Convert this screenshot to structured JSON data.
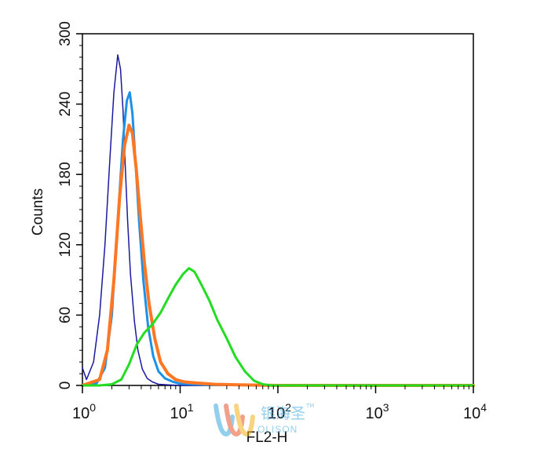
{
  "chart_data": {
    "type": "line",
    "xlabel": "FL2-H",
    "ylabel": "Counts",
    "xscale": "log",
    "xlim": [
      1,
      10000
    ],
    "ylim": [
      0,
      300
    ],
    "x_ticks": [
      {
        "value": 1,
        "base": "10",
        "exp": "0"
      },
      {
        "value": 10,
        "base": "10",
        "exp": "1"
      },
      {
        "value": 100,
        "base": "10",
        "exp": "2"
      },
      {
        "value": 1000,
        "base": "10",
        "exp": "3"
      },
      {
        "value": 10000,
        "base": "10",
        "exp": "4"
      }
    ],
    "y_ticks": [
      0,
      60,
      120,
      180,
      240,
      300
    ],
    "grid": false,
    "series": [
      {
        "color": "#1a1aa0",
        "stroke_width": 1.5,
        "x": [
          1,
          1.1,
          1.3,
          1.5,
          1.7,
          1.9,
          2.1,
          2.3,
          2.45,
          2.6,
          2.75,
          2.9,
          3.1,
          3.4,
          3.7,
          4.1,
          4.6,
          5.2,
          6,
          7.5,
          10,
          20,
          100,
          10000
        ],
        "y": [
          15,
          5,
          20,
          60,
          120,
          190,
          250,
          282,
          270,
          235,
          185,
          140,
          95,
          55,
          30,
          14,
          6,
          3,
          1,
          0.5,
          0,
          0,
          0,
          0
        ]
      },
      {
        "color": "#1e90e6",
        "stroke_width": 3,
        "x": [
          1,
          1.4,
          1.7,
          2,
          2.3,
          2.6,
          2.85,
          3.05,
          3.25,
          3.5,
          3.8,
          4.2,
          4.7,
          5.3,
          6,
          7,
          8.5,
          10,
          13,
          20,
          100,
          10000
        ],
        "y": [
          0,
          2,
          15,
          60,
          140,
          210,
          243,
          250,
          232,
          190,
          140,
          90,
          50,
          25,
          12,
          6,
          3,
          1.5,
          1,
          0.5,
          0,
          0
        ]
      },
      {
        "color": "#ff7722",
        "stroke_width": 4,
        "x": [
          1,
          1.5,
          1.8,
          2.1,
          2.4,
          2.7,
          3,
          3.25,
          3.55,
          3.9,
          4.3,
          4.8,
          5.5,
          6.3,
          7.5,
          9,
          11,
          15,
          22,
          40,
          100,
          10000
        ],
        "y": [
          0,
          5,
          30,
          90,
          160,
          205,
          222,
          215,
          185,
          145,
          105,
          70,
          40,
          20,
          10,
          5,
          3,
          2,
          1,
          0.5,
          0,
          0
        ]
      },
      {
        "color": "#22dd22",
        "stroke_width": 3,
        "x": [
          1,
          1.5,
          2,
          2.5,
          3,
          3.6,
          4.3,
          5.2,
          6.3,
          7.6,
          9,
          10.7,
          12.3,
          14,
          16.5,
          20,
          24,
          30,
          37,
          46,
          57,
          70,
          85,
          100,
          130,
          200,
          1000,
          10000
        ],
        "y": [
          0,
          0,
          1,
          5,
          18,
          35,
          45,
          52,
          62,
          75,
          86,
          95,
          100,
          97,
          86,
          72,
          56,
          40,
          24,
          12,
          4,
          1,
          0,
          0,
          0,
          0,
          0,
          0
        ]
      }
    ]
  },
  "watermark": {
    "name": "银海圣",
    "sub": "OLISON",
    "tm": "TM",
    "colors": [
      "#3aa8e0",
      "#e8532a",
      "#f3b21a"
    ]
  }
}
